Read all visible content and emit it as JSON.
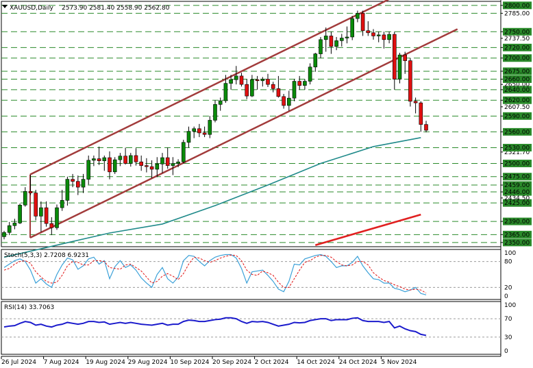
{
  "header": {
    "symbol": "XAUUSD,Daily",
    "ohlc": "2573.90 2581.40 2558.90 2562.80"
  },
  "chart_data": [
    {
      "type": "candlestick",
      "title": "XAUUSD,Daily",
      "ylim": [
        2342,
        2805
      ],
      "y_ticks": [
        2350.0,
        2365.0,
        2390.0,
        2425.0,
        2434.5,
        2446.0,
        2459.0,
        2475.0,
        2500.0,
        2521.7,
        2530.0,
        2560.0,
        2590.0,
        2607.5,
        2620.0,
        2640.0,
        2650.0,
        2660.0,
        2675.0,
        2700.0,
        2720.0,
        2737.5,
        2750.0,
        2785.0,
        2800.0
      ],
      "y_tick_labels": [
        "2350.00",
        "2365.00",
        "2390.00",
        "2425.00",
        "2434.50",
        "2446.00",
        "2459.00",
        "2475.00",
        "2500.00",
        "2521.70",
        "2530.00",
        "2560.00",
        "2590.00",
        "2607.50",
        "2620.00",
        "2640.00",
        "2650.00",
        "2660.00",
        "2675.00",
        "2700.00",
        "2720.00",
        "2737.50",
        "2750.00",
        "2785.00",
        "2800.00"
      ],
      "highlighted_price_labels": [
        2800.0,
        2750.0,
        2720.0,
        2700.0,
        2675.0,
        2660.0,
        2640.0,
        2620.0,
        2590.0,
        2560.0,
        2530.0,
        2500.0,
        2475.0,
        2459.0,
        2446.0,
        2425.0,
        2390.0,
        2365.0,
        2350.0
      ],
      "hlines": [
        2800,
        2785,
        2750,
        2720,
        2700,
        2675,
        2660,
        2640,
        2620,
        2590,
        2560,
        2530,
        2500,
        2475,
        2459,
        2446,
        2425,
        2390,
        2365,
        2350
      ],
      "x_labels": [
        "26 Jul 2024",
        "7 Aug 2024",
        "19 Aug 2024",
        "29 Aug 2024",
        "10 Sep 2024",
        "20 Sep 2024",
        "2 Oct 2024",
        "14 Oct 2024",
        "24 Oct 2024",
        "5 Nov 2024"
      ],
      "x_label_index": [
        0,
        8,
        16,
        24,
        32,
        40,
        48,
        56,
        64,
        72
      ],
      "ohlc": [
        [
          2361,
          2372,
          2356,
          2369
        ],
        [
          2369,
          2389,
          2364,
          2382
        ],
        [
          2382,
          2395,
          2375,
          2387
        ],
        [
          2387,
          2424,
          2385,
          2421
        ],
        [
          2421,
          2455,
          2418,
          2447
        ],
        [
          2447,
          2478,
          2440,
          2444
        ],
        [
          2444,
          2450,
          2392,
          2400
        ],
        [
          2400,
          2428,
          2370,
          2416
        ],
        [
          2416,
          2428,
          2380,
          2386
        ],
        [
          2386,
          2398,
          2364,
          2378
        ],
        [
          2378,
          2422,
          2374,
          2416
        ],
        [
          2416,
          2450,
          2410,
          2430
        ],
        [
          2430,
          2475,
          2420,
          2470
        ],
        [
          2470,
          2480,
          2455,
          2466
        ],
        [
          2466,
          2477,
          2440,
          2455
        ],
        [
          2455,
          2480,
          2444,
          2470
        ],
        [
          2470,
          2515,
          2460,
          2506
        ],
        [
          2506,
          2515,
          2495,
          2509
        ],
        [
          2509,
          2532,
          2497,
          2505
        ],
        [
          2505,
          2515,
          2486,
          2511
        ],
        [
          2511,
          2523,
          2470,
          2484
        ],
        [
          2484,
          2512,
          2480,
          2507
        ],
        [
          2507,
          2520,
          2495,
          2514
        ],
        [
          2514,
          2530,
          2498,
          2500
        ],
        [
          2500,
          2520,
          2494,
          2515
        ],
        [
          2515,
          2529,
          2496,
          2503
        ],
        [
          2503,
          2515,
          2486,
          2496
        ],
        [
          2496,
          2510,
          2483,
          2494
        ],
        [
          2494,
          2506,
          2472,
          2489
        ],
        [
          2489,
          2512,
          2474,
          2499
        ],
        [
          2499,
          2520,
          2482,
          2511
        ],
        [
          2511,
          2530,
          2490,
          2496
        ],
        [
          2496,
          2512,
          2478,
          2500
        ],
        [
          2500,
          2508,
          2493,
          2503
        ],
        [
          2503,
          2545,
          2500,
          2540
        ],
        [
          2540,
          2570,
          2530,
          2561
        ],
        [
          2561,
          2570,
          2548,
          2566
        ],
        [
          2566,
          2575,
          2550,
          2558
        ],
        [
          2558,
          2570,
          2550,
          2555
        ],
        [
          2555,
          2590,
          2548,
          2582
        ],
        [
          2582,
          2620,
          2578,
          2612
        ],
        [
          2612,
          2625,
          2600,
          2619
        ],
        [
          2619,
          2668,
          2615,
          2652
        ],
        [
          2652,
          2668,
          2640,
          2659
        ],
        [
          2659,
          2685,
          2650,
          2666
        ],
        [
          2666,
          2672,
          2646,
          2650
        ],
        [
          2650,
          2660,
          2622,
          2628
        ],
        [
          2628,
          2668,
          2626,
          2659
        ],
        [
          2659,
          2666,
          2640,
          2657
        ],
        [
          2657,
          2664,
          2646,
          2660
        ],
        [
          2660,
          2670,
          2645,
          2650
        ],
        [
          2650,
          2655,
          2635,
          2642
        ],
        [
          2642,
          2666,
          2625,
          2627
        ],
        [
          2627,
          2632,
          2604,
          2610
        ],
        [
          2610,
          2638,
          2600,
          2624
        ],
        [
          2624,
          2660,
          2618,
          2656
        ],
        [
          2656,
          2666,
          2640,
          2648
        ],
        [
          2648,
          2660,
          2640,
          2656
        ],
        [
          2656,
          2690,
          2650,
          2683
        ],
        [
          2683,
          2710,
          2674,
          2708
        ],
        [
          2708,
          2740,
          2700,
          2735
        ],
        [
          2735,
          2758,
          2712,
          2742
        ],
        [
          2742,
          2750,
          2708,
          2722
        ],
        [
          2722,
          2740,
          2715,
          2733
        ],
        [
          2733,
          2746,
          2722,
          2738
        ],
        [
          2738,
          2760,
          2728,
          2740
        ],
        [
          2740,
          2780,
          2734,
          2775
        ],
        [
          2775,
          2790,
          2768,
          2785
        ],
        [
          2785,
          2790,
          2742,
          2752
        ],
        [
          2752,
          2770,
          2742,
          2748
        ],
        [
          2748,
          2755,
          2735,
          2742
        ],
        [
          2742,
          2750,
          2730,
          2744
        ],
        [
          2744,
          2750,
          2718,
          2735
        ],
        [
          2735,
          2750,
          2728,
          2745
        ],
        [
          2745,
          2750,
          2640,
          2660
        ],
        [
          2660,
          2710,
          2652,
          2706
        ],
        [
          2706,
          2712,
          2670,
          2695
        ],
        [
          2695,
          2700,
          2608,
          2618
        ],
        [
          2618,
          2625,
          2595,
          2615
        ],
        [
          2615,
          2618,
          2560,
          2574
        ],
        [
          2574,
          2581,
          2559,
          2563
        ]
      ],
      "channel": {
        "upper": {
          "start": [
            0,
            2479
          ],
          "end": [
            81,
            2875
          ]
        },
        "lower": {
          "start": [
            0,
            2359
          ],
          "end": [
            81,
            2755
          ]
        }
      },
      "moving_averages": [
        {
          "color": "#1f8a8a",
          "points": [
            [
              0,
              2322
            ],
            [
              10,
              2345
            ],
            [
              20,
              2368
            ],
            [
              30,
              2385
            ],
            [
              40,
              2420
            ],
            [
              50,
              2459
            ],
            [
              60,
              2500
            ],
            [
              70,
              2532
            ],
            [
              79,
              2549
            ]
          ]
        },
        {
          "color": "#e02020",
          "points": [
            [
              59,
              2345
            ],
            [
              79,
              2403
            ]
          ]
        }
      ]
    },
    {
      "type": "line",
      "title": "Stoch(5,3,3) 2.7208 6.9231",
      "ylim": [
        0,
        100
      ],
      "y_ticks": [
        100,
        80,
        20,
        0
      ],
      "levels": [
        80,
        20
      ],
      "series": [
        {
          "name": "%K",
          "values": [
            66,
            74,
            82,
            86,
            80,
            60,
            30,
            40,
            28,
            20,
            50,
            72,
            88,
            84,
            62,
            70,
            86,
            90,
            74,
            82,
            40,
            68,
            82,
            66,
            72,
            60,
            42,
            30,
            20,
            50,
            66,
            40,
            30,
            44,
            82,
            94,
            92,
            80,
            70,
            82,
            90,
            94,
            96,
            96,
            88,
            64,
            30,
            56,
            58,
            60,
            48,
            34,
            16,
            10,
            34,
            74,
            72,
            86,
            90,
            94,
            96,
            92,
            80,
            66,
            70,
            70,
            78,
            92,
            70,
            54,
            40,
            38,
            30,
            30,
            18,
            15,
            10,
            14,
            20,
            6,
            2.7
          ]
        },
        {
          "name": "%D",
          "values": [
            60,
            64,
            74,
            80,
            82,
            76,
            56,
            44,
            34,
            30,
            32,
            48,
            70,
            80,
            78,
            72,
            72,
            82,
            82,
            80,
            66,
            64,
            62,
            72,
            74,
            66,
            58,
            44,
            30,
            34,
            46,
            52,
            46,
            38,
            52,
            74,
            90,
            88,
            82,
            78,
            82,
            88,
            92,
            95,
            94,
            82,
            60,
            50,
            48,
            58,
            54,
            48,
            32,
            20,
            20,
            40,
            60,
            78,
            82,
            90,
            94,
            94,
            90,
            80,
            72,
            70,
            72,
            80,
            80,
            72,
            54,
            44,
            36,
            32,
            26,
            22,
            16,
            14,
            16,
            14,
            6.9
          ]
        }
      ]
    },
    {
      "type": "line",
      "title": "RSI(14) 33.7063",
      "ylim": [
        0,
        100
      ],
      "y_ticks": [
        100,
        70,
        30,
        0
      ],
      "levels": [
        70,
        30
      ],
      "series": [
        {
          "name": "RSI(14)",
          "values": [
            52,
            54,
            55,
            60,
            64,
            62,
            56,
            58,
            54,
            52,
            56,
            58,
            62,
            60,
            58,
            60,
            64,
            64,
            62,
            63,
            58,
            60,
            62,
            60,
            62,
            60,
            58,
            57,
            56,
            58,
            60,
            56,
            58,
            58,
            64,
            67,
            66,
            64,
            64,
            66,
            68,
            69,
            72,
            72,
            70,
            64,
            60,
            64,
            63,
            64,
            62,
            58,
            54,
            56,
            58,
            62,
            61,
            62,
            66,
            68,
            70,
            70,
            66,
            68,
            68,
            68,
            71,
            72,
            66,
            64,
            64,
            64,
            62,
            64,
            50,
            54,
            48,
            44,
            42,
            36,
            33.7
          ]
        }
      ]
    }
  ]
}
